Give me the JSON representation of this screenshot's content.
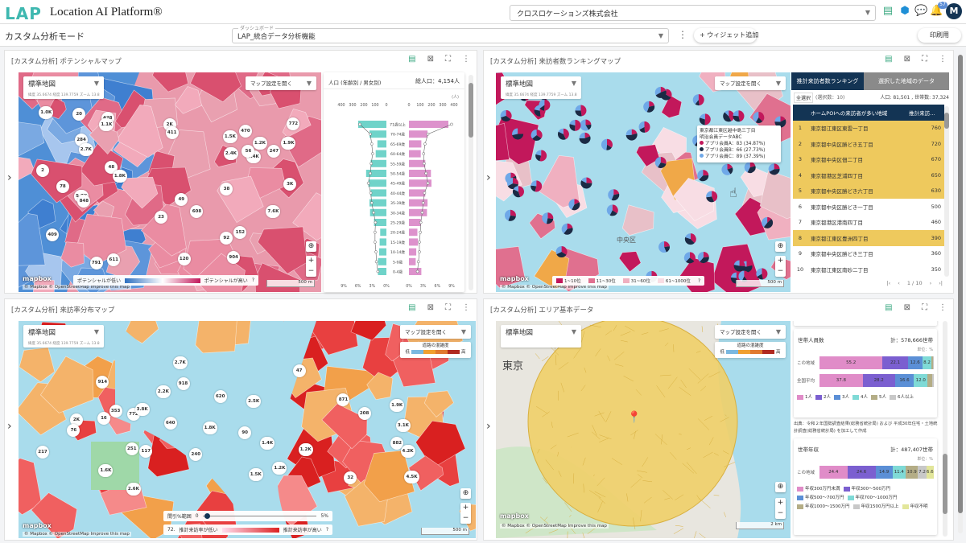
{
  "header": {
    "logo": "LAP",
    "app_title": "Location AI Platform®",
    "company": "クロスロケーションズ株式会社",
    "notification_count": "57",
    "avatar_initial": "M"
  },
  "subheader": {
    "mode": "カスタム分析モード",
    "dashboard_label": "ダッシュボード",
    "dashboard_value": "LAP_統合データ分析機能",
    "add_widget": "+ ウィジェット追加",
    "print": "印刷用"
  },
  "map_common": {
    "base_map": "標準地図",
    "coords": "緯度 35.6674  経度 139.7759  ズーム 13.8",
    "map_settings": "マップ設定を開く",
    "mapbox": "mapbox",
    "attribution": "© Mapbox © OpenStreetMap  Improve this map",
    "scale_500": "500 m",
    "scale_2km": "2 km"
  },
  "panel_potential": {
    "title": "[カスタム分析] ポテンシャルマップ",
    "legend_low": "ポテンシャルが低い",
    "legend_high": "ポテンシャルが高い",
    "bubbles": [
      "2",
      "48",
      "608",
      "20",
      "409",
      "5.2K",
      "2K",
      "848",
      "1.0K",
      "284",
      "428",
      "152",
      "49",
      "611",
      "1.1K",
      "2.4K",
      "470",
      "791",
      "247",
      "772",
      "904",
      "2.7K",
      "1.9K",
      "7.6K",
      "2.4K",
      "1.8K",
      "92",
      "78",
      "23",
      "1.5K",
      "38",
      "120",
      "3K",
      "56",
      "1.2K",
      "411"
    ],
    "chart": {
      "title": "人口 (年齢別 / 男女別)",
      "total": "総人口：4,154人",
      "unit": "(人)",
      "legend_male": "男性",
      "legend_female": "女性"
    }
  },
  "chart_data": {
    "type": "bar",
    "title": "人口 (年齢別 / 男女別)",
    "orientation": "horizontal-pyramid",
    "xlim": [
      0,
      400
    ],
    "x_ticks": [
      "400",
      "300",
      "200",
      "100",
      "0"
    ],
    "pct_ticks": [
      "9%",
      "6%",
      "3%",
      "0%"
    ],
    "categories": [
      "71歳以上",
      "70-74歳",
      "65-69歳",
      "60-64歳",
      "55-59歳",
      "50-54歳",
      "45-49歳",
      "40-44歳",
      "35-39歳",
      "30-34歳",
      "25-29歳",
      "20-24歳",
      "15-19歳",
      "10-14歳",
      "5-9歳",
      "0-4歳"
    ],
    "series": [
      {
        "name": "男性",
        "color": "#6fd3c9",
        "values": [
          250,
          150,
          80,
          95,
          140,
          180,
          160,
          140,
          150,
          145,
          110,
          55,
          60,
          65,
          75,
          75
        ],
        "line_pct": [
          5.6,
          3.4,
          3.1,
          2.9,
          3.2,
          3.4,
          3.8,
          3.3,
          3.1,
          2.7,
          2.3,
          2.4,
          2.4,
          2.2,
          2.1,
          1.8
        ]
      },
      {
        "name": "女性",
        "color": "#dd92cc",
        "values": [
          350,
          165,
          110,
          105,
          145,
          195,
          200,
          145,
          165,
          160,
          105,
          75,
          80,
          65,
          60,
          110
        ],
        "line_pct": [
          9.0,
          4.0,
          3.4,
          3.1,
          3.2,
          3.6,
          4.0,
          3.3,
          3.0,
          2.8,
          2.5,
          2.4,
          2.2,
          2.2,
          2.0,
          1.8
        ]
      }
    ]
  },
  "panel_ranking": {
    "title": "[カスタム分析] 来訪者数ランキングマップ",
    "district_label": "中央区",
    "tooltip": {
      "title": "東京都江東区越中島三丁目",
      "subtitle": "明治会員データABC",
      "rows": [
        {
          "label": "アプリ会員A：83 (34.87%)",
          "color": "#c2185b"
        },
        {
          "label": "アプリ会員B：66 (27.73%)",
          "color": "#1b2a44"
        },
        {
          "label": "アプリ会員C：89 (37.39%)",
          "color": "#6fa8e8"
        }
      ]
    },
    "legend": [
      "1~10位",
      "11~30位",
      "31~60位",
      "61~1000位"
    ],
    "legend_colors": [
      "#c2185b",
      "#e0708f",
      "#f0b0c0",
      "#f8dde4"
    ],
    "tabs": [
      "推計来訪者数ランキング",
      "選択した地域のデータ"
    ],
    "select_all": "全選択",
    "selected_count": "(選択数：10)",
    "summary": "人口: 81,501 , 世帯数: 37,324",
    "table_headers": [
      "",
      "ホームPOIへの来訪者が多い地域",
      "推計来訪…"
    ],
    "rows": [
      {
        "rank": "1",
        "area": "東京都江東区東雲一丁目",
        "value": "760",
        "hl": true
      },
      {
        "rank": "2",
        "area": "東京都中央区勝どき五丁目",
        "value": "720",
        "hl": true
      },
      {
        "rank": "3",
        "area": "東京都中央区佃二丁目",
        "value": "670",
        "hl": true
      },
      {
        "rank": "4",
        "area": "東京都港区芝浦四丁目",
        "value": "650",
        "hl": true
      },
      {
        "rank": "5",
        "area": "東京都中央区勝どき六丁目",
        "value": "630",
        "hl": true
      },
      {
        "rank": "6",
        "area": "東京都中央区勝どき一丁目",
        "value": "500",
        "hl": false
      },
      {
        "rank": "7",
        "area": "東京都港区港南四丁目",
        "value": "460",
        "hl": false
      },
      {
        "rank": "8",
        "area": "東京都江東区豊洲四丁目",
        "value": "390",
        "hl": true
      },
      {
        "rank": "9",
        "area": "東京都中央区勝どき三丁目",
        "value": "360",
        "hl": false
      },
      {
        "rank": "10",
        "area": "東京都江東区南砂二丁目",
        "value": "350",
        "hl": false
      }
    ],
    "pagination": "1 / 10"
  },
  "panel_visit": {
    "title": "[カスタム分析] 来訪率分布マップ",
    "road_legend": "道路の混雑度",
    "road_low": "低",
    "road_high": "高",
    "slider_label": "間引%範囲",
    "slider_min": "0",
    "slider_max": "5%",
    "legend_low": "推計来訪率が低い",
    "legend_high": "推計来訪率が高い",
    "legend_prefix": "72.",
    "bubbles": [
      "217",
      "871",
      "47",
      "772",
      "240",
      "882",
      "914",
      "117",
      "2.7K",
      "1.9K",
      "2K",
      "4.2K",
      "251",
      "620",
      "76",
      "1.5K",
      "2.2K",
      "1.2K",
      "1.6K",
      "4.5K",
      "2.6K",
      "1.2K",
      "3.8K",
      "16",
      "918",
      "208",
      "353",
      "32",
      "1.8K",
      "2.5K",
      "90",
      "1.4K",
      "3.1K",
      "640"
    ]
  },
  "panel_area": {
    "title": "[カスタム分析] エリア基本データ",
    "place_label": "東京",
    "household_size": {
      "title": "世帯人員数",
      "total": "計：578,666世帯",
      "unit": "単位：%",
      "rows": [
        {
          "label": "この地域",
          "values": [
            55.2,
            22.1,
            12.6,
            8.2,
            1.5,
            0.4
          ]
        },
        {
          "label": "全国平均",
          "values": [
            37.8,
            28.2,
            16.6,
            12.0,
            4.0,
            1.4
          ]
        }
      ],
      "legend": [
        "1人",
        "2人",
        "3人",
        "4人",
        "5人",
        "6人以上"
      ],
      "colors": [
        "#e08cc8",
        "#7b5fd0",
        "#5b8fd6",
        "#7fdad6",
        "#b4ad86",
        "#c8c8c8"
      ]
    },
    "source_note": "出典：令和２年国勢調査結果(総務省統計局) および 平成30年住宅・土地統計調査(総務省統計局) を加工して作成",
    "income": {
      "title": "世帯年収",
      "total": "計：487,407世帯",
      "unit": "単位：%",
      "rows": [
        {
          "label": "この地域",
          "values": [
            24.4,
            24.6,
            14.9,
            11.4,
            10.9,
            7.2,
            6.6
          ]
        }
      ],
      "legend": [
        "年収300万円未満",
        "年収300～500万円",
        "年収500～700万円",
        "年収700～1000万円",
        "年収1000～1500万円",
        "年収1500万円以上",
        "年収不明"
      ],
      "colors": [
        "#e08cc8",
        "#7b5fd0",
        "#5b8fd6",
        "#7fdad6",
        "#b4ad86",
        "#c8c8c8",
        "#e2e69a"
      ]
    }
  }
}
